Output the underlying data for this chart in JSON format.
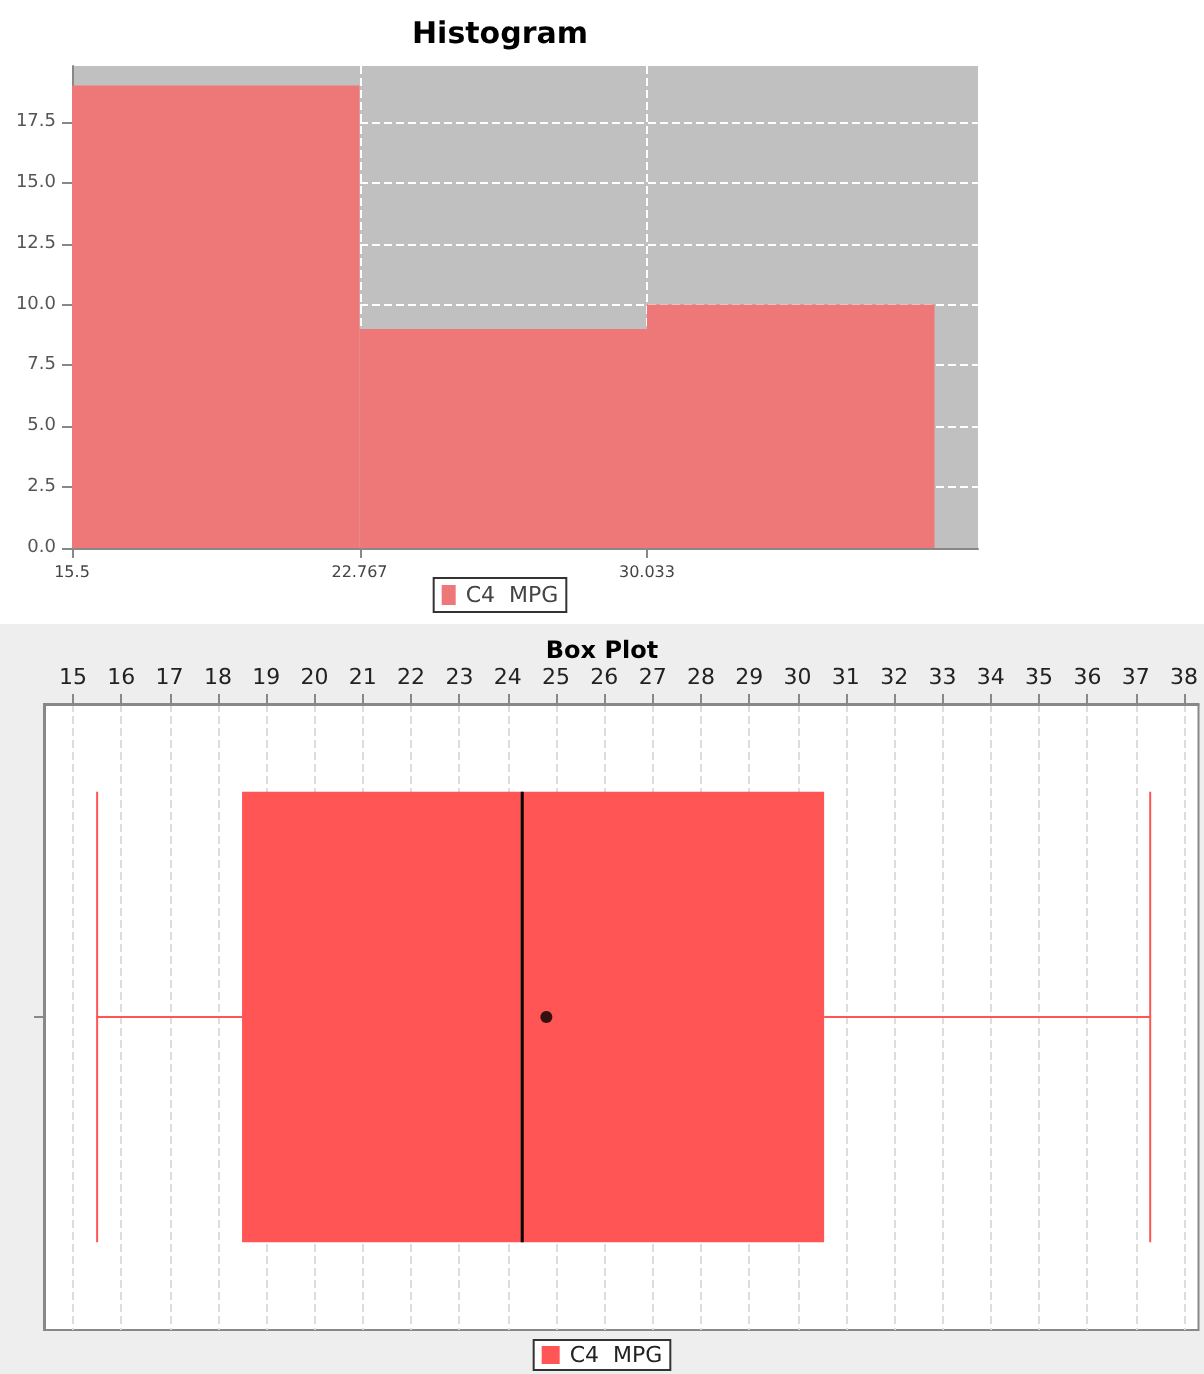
{
  "chart_data": [
    {
      "type": "histogram",
      "title": "Histogram",
      "bins": [
        15.5,
        22.767,
        30.033,
        37.3
      ],
      "series": [
        {
          "name": "C4  MPG",
          "color": "#ee7777",
          "values": [
            19,
            9,
            10
          ]
        }
      ],
      "xlim": [
        15.5,
        38.4
      ],
      "xticks": [
        15.5,
        22.767,
        30.033
      ],
      "ylim": [
        0,
        19.8
      ],
      "yticks": [
        {
          "value": 0,
          "label": "0.0"
        },
        {
          "value": 2.5,
          "label": "2.5"
        },
        {
          "value": 5,
          "label": "5.0"
        },
        {
          "value": 7.5,
          "label": "7.5"
        },
        {
          "value": 10,
          "label": "10.0"
        },
        {
          "value": 12.5,
          "label": "12.5"
        },
        {
          "value": 15,
          "label": "15.0"
        },
        {
          "value": 17.5,
          "label": "17.5"
        }
      ],
      "grid": true,
      "legend": "bottom"
    },
    {
      "type": "box",
      "title": "Box Plot",
      "orientation": "horizontal",
      "categories": [
        null
      ],
      "series": [
        {
          "name": "C4  MPG",
          "color": "#ff5555",
          "boxes": [
            {
              "low": 15.5,
              "q1": 18.5,
              "median": 24.3,
              "q3": 30.55,
              "high": 37.3,
              "mean": 24.8
            }
          ]
        }
      ],
      "xlim": [
        14.4,
        38.3
      ],
      "xticks": [
        15,
        16,
        17,
        18,
        19,
        20,
        21,
        22,
        23,
        24,
        25,
        26,
        27,
        28,
        29,
        30,
        31,
        32,
        33,
        34,
        35,
        36,
        37,
        38
      ],
      "grid": "x",
      "legend": "bottom"
    }
  ]
}
